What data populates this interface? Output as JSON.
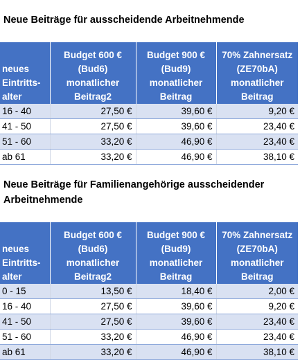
{
  "section1": {
    "title": "Neue Beiträge für ausscheidende Arbeitnehmende",
    "headers": [
      [
        "neues",
        "Eintritts-",
        "alter"
      ],
      [
        "Budget 600 €",
        "(Bud6)",
        "monatlicher",
        "Beitrag2"
      ],
      [
        "Budget 900 €",
        "(Bud9)",
        "monatlicher",
        "Beitrag"
      ],
      [
        "70% Zahnersatz",
        "(ZE70bA)",
        "monatlicher",
        "Beitrag"
      ]
    ],
    "rows": [
      [
        "16 - 40",
        "27,50 €",
        "39,60 €",
        "9,20 €"
      ],
      [
        "41 - 50",
        "27,50 €",
        "39,60 €",
        "23,40 €"
      ],
      [
        "51 - 60",
        "33,20 €",
        "46,90 €",
        "23,40 €"
      ],
      [
        "ab 61",
        "33,20 €",
        "46,90 €",
        "38,10 €"
      ]
    ]
  },
  "section2": {
    "title": "Neue Beiträge für Familienangehörige ausscheidender Arbeitnehmende",
    "headers": [
      [
        "neues",
        "Eintritts-",
        "alter"
      ],
      [
        "Budget 600 €",
        "(Bud6)",
        "monatlicher",
        "Beitrag2"
      ],
      [
        "Budget 900 €",
        "(Bud9)",
        "monatlicher",
        "Beitrag"
      ],
      [
        "70% Zahnersatz",
        "(ZE70bA)",
        "monatlicher",
        "Beitrag"
      ]
    ],
    "rows": [
      [
        "0 - 15",
        "13,50 €",
        "18,40 €",
        "2,00 €"
      ],
      [
        "16 - 40",
        "27,50 €",
        "39,60 €",
        "9,20 €"
      ],
      [
        "41 - 50",
        "27,50 €",
        "39,60 €",
        "23,40 €"
      ],
      [
        "51 - 60",
        "33,20 €",
        "46,90 €",
        "23,40 €"
      ],
      [
        "ab 61",
        "33,20 €",
        "46,90 €",
        "38,10 €"
      ]
    ]
  },
  "colors": {
    "header_bg": "#4472c4",
    "header_text": "#ffffff",
    "band_row": "#d9e1f2",
    "plain_row": "#ffffff",
    "row_border": "#8ea9db"
  }
}
